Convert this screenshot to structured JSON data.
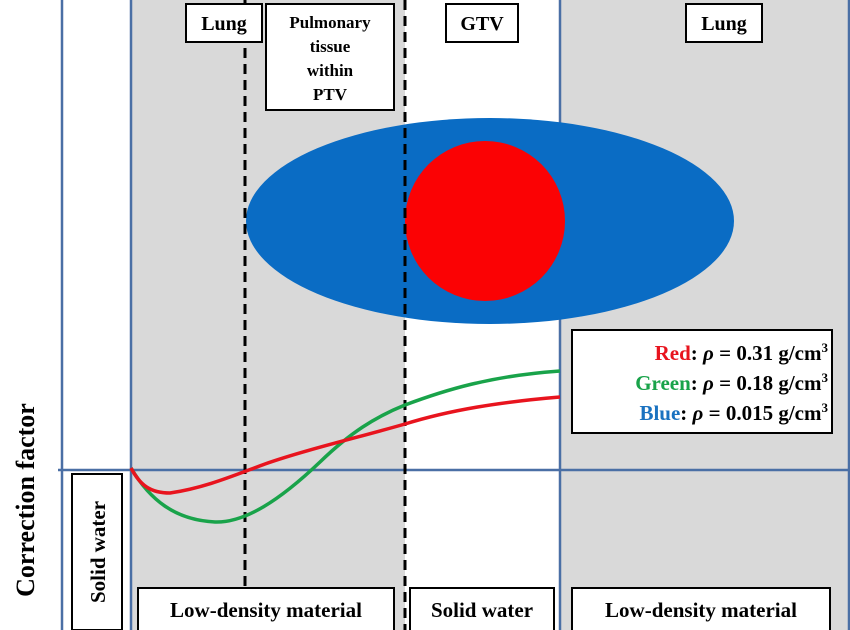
{
  "y_axis_label": "Correction factor",
  "left_strip_label": "Solid water",
  "top_labels": {
    "lung_left": "Lung",
    "pulmonary": [
      "Pulmonary",
      "tissue",
      "within",
      "PTV"
    ],
    "gtv": "GTV",
    "lung_right": "Lung"
  },
  "bottom_labels": {
    "low_density_left": "Low-density material",
    "solid_water": "Solid water",
    "low_density_right": "Low-density material"
  },
  "legend": [
    {
      "name": "Red",
      "color": "#e8141e",
      "rho_symbol": "ρ",
      "text": " = 0.31 g/cm",
      "sup": "3"
    },
    {
      "name": "Green",
      "color": "#19a34a",
      "rho_symbol": "ρ",
      "text": " = 0.18 g/cm",
      "sup": "3"
    },
    {
      "name": "Blue",
      "color": "#1a72c0",
      "rho_symbol": "ρ",
      "text": " = 0.015 g/cm",
      "sup": "3"
    }
  ],
  "colors": {
    "gray_region": "#d9d9d9",
    "grid_line": "#4a6fa5",
    "ptv_ellipse": "#0a6cc4",
    "gtv_circle": "#fb0204",
    "red_curve": "#e8141e",
    "green_curve": "#19a34a"
  }
}
